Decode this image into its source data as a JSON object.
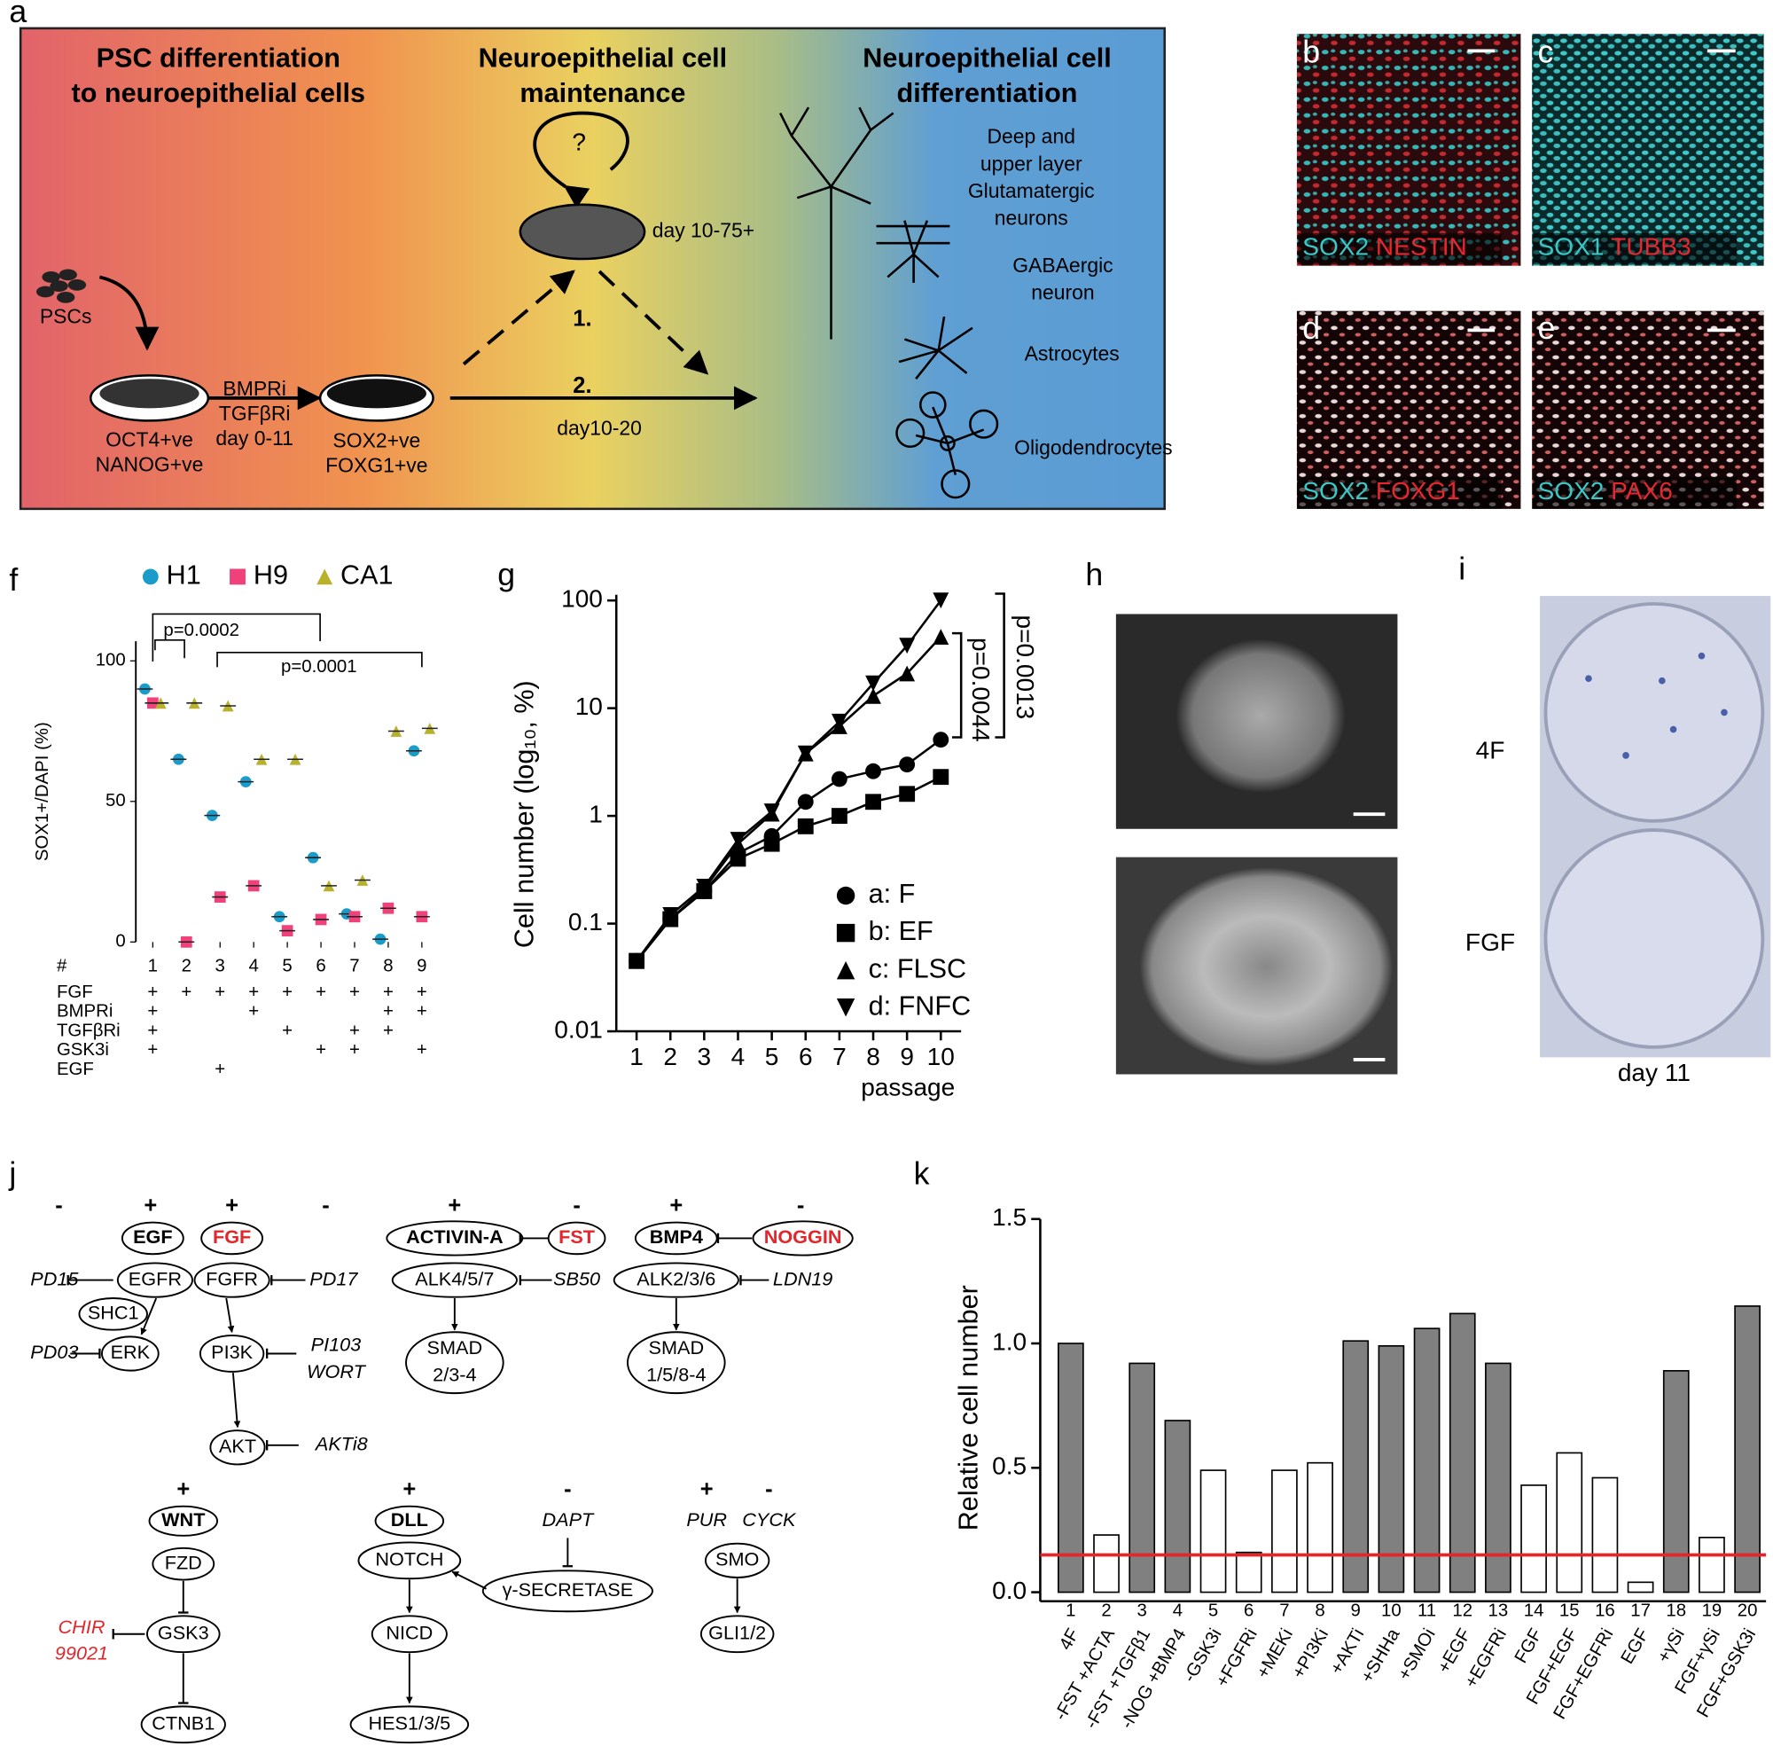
{
  "panel_labels": [
    "a",
    "b",
    "c",
    "d",
    "e",
    "f",
    "g",
    "h",
    "i",
    "j",
    "k"
  ],
  "overview": {
    "headings": [
      [
        "PSC differentiation",
        "to neuroepithelial cells"
      ],
      [
        "Neuroepithelial cell",
        "maintenance"
      ],
      [
        "Neuroepithelial cell",
        "differentiation"
      ]
    ],
    "loop": "?",
    "maintenance_days": "day 10-75+",
    "cell_types": [
      [
        "Deep and",
        "upper layer",
        "Glutamatergic",
        "neurons"
      ],
      [
        "GABAergic",
        "neuron"
      ],
      [
        "Astrocytes"
      ],
      [
        "Oligodendrocytes"
      ]
    ],
    "start": "PSCs",
    "psc_markers": [
      "OCT4+ve",
      "NANOG+ve"
    ],
    "treatment": [
      "BMPRi",
      "TGFβRi",
      "day 0-11"
    ],
    "ne_markers": [
      "SOX2+ve",
      "FOXG1+ve"
    ],
    "routes": [
      "1.",
      "2."
    ],
    "route_days": "day10-20"
  },
  "stains": [
    [
      "SOX2",
      "NESTIN"
    ],
    [
      "SOX1",
      "TUBB3"
    ],
    [
      "SOX2",
      "FOXG1"
    ],
    [
      "SOX2",
      "PAX6"
    ]
  ],
  "colony_assay": {
    "rows": [
      "4F",
      "FGF"
    ],
    "caption": "day 11"
  },
  "chart_data": [
    {
      "type": "dot",
      "ylabel": "SOX1+/DAPI (%)",
      "categories": [
        1,
        2,
        3,
        4,
        5,
        6,
        7,
        8,
        9
      ],
      "table_header": "#",
      "conditions": [
        {
          "name": "FGF",
          "marks": [
            "+",
            "+",
            "+",
            "+",
            "+",
            "+",
            "+",
            "+",
            "+"
          ]
        },
        {
          "name": "BMPRi",
          "marks": [
            "+",
            null,
            null,
            "+",
            null,
            null,
            null,
            "+",
            "+"
          ]
        },
        {
          "name": "TGFβRi",
          "marks": [
            "+",
            null,
            null,
            null,
            "+",
            null,
            "+",
            "+",
            null
          ]
        },
        {
          "name": "GSK3i",
          "marks": [
            "+",
            null,
            null,
            null,
            null,
            "+",
            "+",
            null,
            "+"
          ]
        },
        {
          "name": "EGF",
          "marks": [
            null,
            null,
            "+",
            null,
            null,
            null,
            null,
            null,
            null
          ]
        }
      ],
      "series": [
        {
          "name": "H1",
          "color": "#1a9ccb",
          "marker": "circle",
          "values": [
            90,
            65,
            45,
            57,
            9,
            30,
            10,
            1,
            68
          ]
        },
        {
          "name": "H9",
          "color": "#f0417b",
          "marker": "square",
          "values": [
            85,
            0,
            16,
            20,
            4,
            8,
            9,
            12,
            9
          ]
        },
        {
          "name": "CA1",
          "color": "#b9b12c",
          "marker": "triangle",
          "values": [
            85,
            85,
            84,
            65,
            65,
            20,
            22,
            75,
            76
          ]
        }
      ],
      "annotations": [
        "p=0.0002",
        "p=0.0001"
      ],
      "ylim": [
        0,
        107
      ],
      "yticks": [
        0,
        50,
        100
      ]
    },
    {
      "type": "line",
      "ylabel": "Cell number (log₁₀, %)",
      "xlabel": "passage",
      "log_y": true,
      "x": [
        1,
        2,
        3,
        4,
        5,
        6,
        7,
        8,
        9,
        10
      ],
      "series": [
        {
          "name": "a: F",
          "color": "#000000",
          "marker": "circle",
          "values": [
            0.045,
            0.11,
            0.2,
            0.45,
            0.65,
            1.35,
            2.2,
            2.6,
            3.0,
            5.1
          ]
        },
        {
          "name": "b: EF",
          "color": "#000000",
          "marker": "square",
          "values": [
            0.045,
            0.11,
            0.2,
            0.4,
            0.55,
            0.8,
            1.0,
            1.35,
            1.6,
            2.3
          ]
        },
        {
          "name": "c: FLSC",
          "color": "#000000",
          "marker": "triangle-up",
          "values": [
            0.045,
            0.11,
            0.21,
            0.55,
            1.05,
            3.8,
            6.8,
            13,
            21,
            46
          ]
        },
        {
          "name": "d: FNFC",
          "color": "#000000",
          "marker": "triangle-down",
          "values": [
            0.045,
            0.12,
            0.22,
            0.6,
            1.1,
            3.8,
            7.5,
            17,
            38,
            100
          ]
        }
      ],
      "annotations": [
        "p=0.0044",
        "p=0.0013"
      ],
      "xlim": [
        0.4,
        10.6
      ],
      "xticks": [
        1,
        2,
        3,
        4,
        5,
        6,
        7,
        8,
        9,
        10
      ],
      "ylim": [
        0.01,
        100
      ],
      "yticks": [
        0.01,
        0.1,
        1,
        10,
        100
      ]
    },
    {
      "type": "bar",
      "ylabel": "Relative cell number",
      "category_numbers": [
        1,
        2,
        3,
        4,
        5,
        6,
        7,
        8,
        9,
        10,
        11,
        12,
        13,
        14,
        15,
        16,
        17,
        18,
        19,
        20
      ],
      "categories": [
        "4F",
        "-FST +ACTA",
        "-FST +TGFβ1",
        "-NOG +BMP4",
        "-GSK3i",
        "+FGFRi",
        "+MEKi",
        "+PI3Ki",
        "+AKTi",
        "+SHHa",
        "+SMOi",
        "+EGF",
        "+EGFRi",
        "FGF",
        "FGF+EGF",
        "FGF+EGFRi",
        "EGF",
        "+γSi",
        "FGF+γSi",
        "FGF+GSK3i"
      ],
      "values": [
        1.0,
        0.23,
        0.92,
        0.69,
        0.49,
        0.16,
        0.49,
        0.52,
        1.01,
        0.99,
        1.06,
        1.12,
        0.92,
        0.43,
        0.56,
        0.46,
        0.04,
        0.89,
        0.22,
        1.15
      ],
      "colors": [
        "#808080",
        "#ffffff",
        "#808080",
        "#808080",
        "#ffffff",
        "#ffffff",
        "#ffffff",
        "#ffffff",
        "#808080",
        "#808080",
        "#808080",
        "#808080",
        "#808080",
        "#ffffff",
        "#ffffff",
        "#ffffff",
        "#ffffff",
        "#808080",
        "#ffffff",
        "#808080"
      ],
      "reference_line": {
        "value": 0.15,
        "color": "#e3262b"
      },
      "ylim": [
        0,
        1.5
      ],
      "yticks": [
        {
          "value": 0,
          "label": "0.0"
        },
        0.5,
        {
          "value": 1,
          "label": "1.0"
        },
        1.5
      ]
    }
  ],
  "pathway": {
    "signs": [
      "-",
      "+",
      "+",
      "-",
      "+",
      "-",
      "+",
      "-",
      "+",
      "+",
      "-",
      "+",
      "-"
    ],
    "nodes": [
      "EGF",
      "FGF",
      "PD15",
      "EGFR",
      "FGFR",
      "PD17",
      "SHC1",
      "PD03",
      "ERK",
      "PI3K",
      "PI103",
      "WORT",
      "AKT",
      "AKTi8",
      "ACTIVIN-A",
      "FST",
      "ALK4/5/7",
      "SB50",
      "SMAD",
      "2/3-4",
      "BMP4",
      "NOGGIN",
      "ALK2/3/6",
      "LDN19",
      "SMAD",
      "1/5/8-4",
      "WNT",
      "FZD",
      "GSK3",
      "CHIR",
      "99021",
      "CTNB1",
      "DLL",
      "NOTCH",
      "NICD",
      "HES1/3/5",
      "DAPT",
      "γ-SECRETASE",
      "PUR",
      "CYCK",
      "SMO",
      "GLI1/2"
    ]
  }
}
